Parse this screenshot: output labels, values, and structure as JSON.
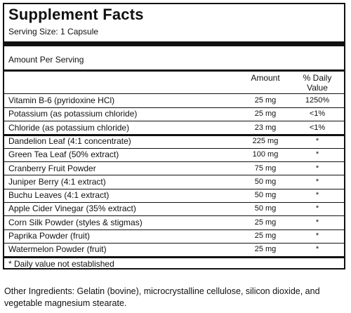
{
  "label": {
    "title": "Supplement Facts",
    "serving_size": "Serving Size: 1 Capsule",
    "amount_per_serving": "Amount Per Serving",
    "col_amount": "Amount",
    "col_daily_value_line1": "% Daily",
    "col_daily_value_line2": "Value",
    "footnote": "* Daily value not established",
    "rows": [
      {
        "name": "Vitamin B-6 (pyridoxine HCl)",
        "amount": "25 mg",
        "dv": "1250%"
      },
      {
        "name": "Potassium (as potassium chloride)",
        "amount": "25 mg",
        "dv": "<1%"
      },
      {
        "name": "Chloride (as potassium chloride)",
        "amount": "23 mg",
        "dv": "<1%"
      },
      {
        "name": "Dandelion Leaf (4:1 concentrate)",
        "amount": "225 mg",
        "dv": "*"
      },
      {
        "name": "Green Tea Leaf (50% extract)",
        "amount": "100 mg",
        "dv": "*"
      },
      {
        "name": "Cranberry Fruit Powder",
        "amount": "75 mg",
        "dv": "*"
      },
      {
        "name": "Juniper Berry (4:1 extract)",
        "amount": "50 mg",
        "dv": "*"
      },
      {
        "name": "Buchu Leaves (4:1 extract)",
        "amount": "50 mg",
        "dv": "*"
      },
      {
        "name": "Apple Cider Vinegar (35% extract)",
        "amount": "50 mg",
        "dv": "*"
      },
      {
        "name": "Corn Silk Powder (styles & stigmas)",
        "amount": "25 mg",
        "dv": "*"
      },
      {
        "name": "Paprika Powder (fruit)",
        "amount": "25 mg",
        "dv": "*"
      },
      {
        "name": "Watermelon Powder (fruit)",
        "amount": "25 mg",
        "dv": "*"
      }
    ]
  },
  "other_ingredients": "Other Ingredients: Gelatin (bovine), microcrystalline cellulose, silicon dioxide, and vegetable magnesium stearate."
}
